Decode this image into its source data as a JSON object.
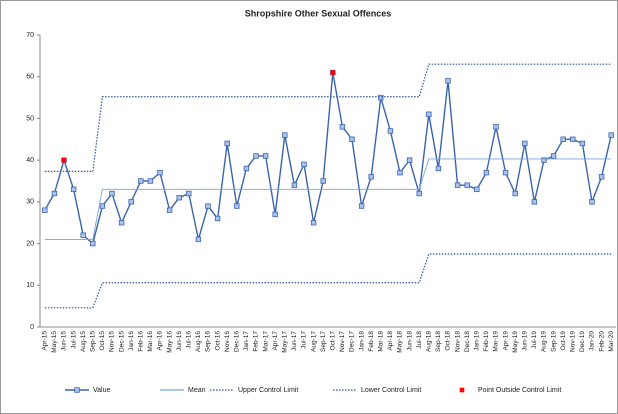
{
  "chart_data": {
    "type": "line",
    "title": "Shropshire Other Sexual Offences",
    "categories": [
      "Apr-15",
      "May-15",
      "Jun-15",
      "Jul-15",
      "Aug-15",
      "Sep-15",
      "Oct-15",
      "Nov-15",
      "Dec-15",
      "Jan-16",
      "Feb-16",
      "Mar-16",
      "Apr-16",
      "May-16",
      "Jun-16",
      "Jul-16",
      "Aug-16",
      "Sep-16",
      "Oct-16",
      "Nov-16",
      "Dec-16",
      "Jan-17",
      "Feb-17",
      "Mar-17",
      "Apr-17",
      "May-17",
      "Jun-17",
      "Jul-17",
      "Aug-17",
      "Sep-17",
      "Oct-17",
      "Nov-17",
      "Dec-17",
      "Jan-18",
      "Feb-18",
      "Mar-18",
      "Apr-18",
      "May-18",
      "Jun-18",
      "Jul-18",
      "Aug-18",
      "Sep-18",
      "Oct-18",
      "Nov-18",
      "Dec-18",
      "Jan-19",
      "Feb-19",
      "Mar-19",
      "Apr-19",
      "May-19",
      "Jun-19",
      "Jul-19",
      "Aug-19",
      "Sep-19",
      "Oct-19",
      "Nov-19",
      "Dec-19",
      "Jan-20",
      "Feb-20",
      "Mar-20"
    ],
    "series": [
      {
        "name": "Value",
        "color": "#3b63ad",
        "marker": "square",
        "values": [
          28,
          32,
          40,
          33,
          22,
          20,
          29,
          32,
          25,
          30,
          35,
          35,
          37,
          28,
          31,
          32,
          21,
          29,
          26,
          44,
          29,
          38,
          41,
          41,
          27,
          46,
          34,
          39,
          25,
          35,
          61,
          48,
          45,
          29,
          36,
          55,
          47,
          37,
          40,
          32,
          51,
          38,
          59,
          34,
          34,
          33,
          37,
          48,
          37,
          32,
          44,
          30,
          40,
          41,
          45,
          45,
          44,
          30,
          36,
          46
        ]
      },
      {
        "name": "Mean",
        "color": "#7aa3d8",
        "values": [
          21,
          21,
          21,
          21,
          21,
          21,
          33,
          33,
          33,
          33,
          33,
          33,
          33,
          33,
          33,
          33,
          33,
          33,
          33,
          33,
          33,
          33,
          33,
          33,
          33,
          33,
          33,
          33,
          33,
          33,
          33,
          33,
          33,
          33,
          33,
          33,
          33,
          33,
          33,
          33,
          40.3,
          40.3,
          40.3,
          40.3,
          40.3,
          40.3,
          40.3,
          40.3,
          40.3,
          40.3,
          40.3,
          40.3,
          40.3,
          40.3,
          40.3,
          40.3,
          40.3,
          40.3,
          40.3,
          40.3
        ]
      },
      {
        "name": "Upper Control Limit",
        "color": "#2f5597",
        "dash": "dotted",
        "values": [
          37.3,
          37.3,
          37.3,
          37.3,
          37.3,
          37.3,
          55.2,
          55.2,
          55.2,
          55.2,
          55.2,
          55.2,
          55.2,
          55.2,
          55.2,
          55.2,
          55.2,
          55.2,
          55.2,
          55.2,
          55.2,
          55.2,
          55.2,
          55.2,
          55.2,
          55.2,
          55.2,
          55.2,
          55.2,
          55.2,
          55.2,
          55.2,
          55.2,
          55.2,
          55.2,
          55.2,
          55.2,
          55.2,
          55.2,
          55.2,
          63,
          63,
          63,
          63,
          63,
          63,
          63,
          63,
          63,
          63,
          63,
          63,
          63,
          63,
          63,
          63,
          63,
          63,
          63,
          63
        ]
      },
      {
        "name": "Lower Control Limit",
        "color": "#2f5597",
        "dash": "dotted",
        "values": [
          4.6,
          4.6,
          4.6,
          4.6,
          4.6,
          4.6,
          10.6,
          10.6,
          10.6,
          10.6,
          10.6,
          10.6,
          10.6,
          10.6,
          10.6,
          10.6,
          10.6,
          10.6,
          10.6,
          10.6,
          10.6,
          10.6,
          10.6,
          10.6,
          10.6,
          10.6,
          10.6,
          10.6,
          10.6,
          10.6,
          10.6,
          10.6,
          10.6,
          10.6,
          10.6,
          10.6,
          10.6,
          10.6,
          10.6,
          10.6,
          17.5,
          17.5,
          17.5,
          17.5,
          17.5,
          17.5,
          17.5,
          17.5,
          17.5,
          17.5,
          17.5,
          17.5,
          17.5,
          17.5,
          17.5,
          17.5,
          17.5,
          17.5,
          17.5,
          17.5
        ]
      },
      {
        "name": "Point Outside Control Limit",
        "color": "#ff0000",
        "marker": "square",
        "line": false,
        "values": [
          null,
          null,
          40,
          null,
          null,
          null,
          null,
          null,
          null,
          null,
          null,
          null,
          null,
          null,
          null,
          null,
          null,
          null,
          null,
          null,
          null,
          null,
          null,
          null,
          null,
          null,
          null,
          null,
          null,
          null,
          61,
          null,
          null,
          null,
          null,
          null,
          null,
          null,
          null,
          null,
          null,
          null,
          null,
          null,
          null,
          null,
          null,
          null,
          null,
          null,
          null,
          null,
          null,
          null,
          null,
          null,
          null,
          null,
          null,
          null
        ]
      }
    ],
    "ylim": [
      0,
      70
    ],
    "yticks": [
      0,
      10,
      20,
      30,
      40,
      50,
      60,
      70
    ],
    "grid": false,
    "legend": "bottom"
  }
}
